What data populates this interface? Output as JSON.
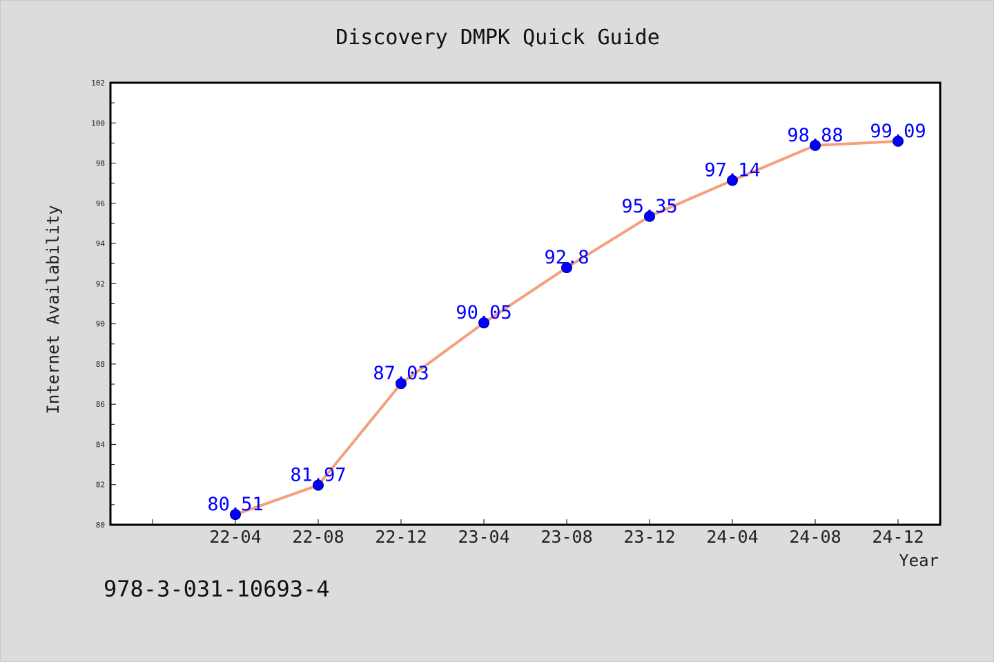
{
  "chart_data": {
    "type": "line",
    "title": "Discovery DMPK Quick Guide",
    "xlabel": "Year",
    "ylabel": "Internet Availability",
    "categories": [
      "22-04",
      "22-08",
      "22-12",
      "23-04",
      "23-08",
      "23-12",
      "24-04",
      "24-08",
      "24-12"
    ],
    "values": [
      80.51,
      81.97,
      87.03,
      90.05,
      92.8,
      95.35,
      97.14,
      98.88,
      99.09
    ],
    "data_labels": [
      "80.51",
      "81.97",
      "87.03",
      "90.05",
      "92.8",
      "95.35",
      "97.14",
      "98.88",
      "99.09"
    ],
    "ylim": [
      80,
      102
    ],
    "yticks": [
      80,
      82,
      84,
      86,
      88,
      90,
      92,
      94,
      96,
      98,
      100,
      102
    ],
    "grid": false,
    "legend": "none",
    "line_color": "#f4a07c",
    "marker_color": "#0000ff",
    "label_color": "#0000ff"
  },
  "footer_note": "978-3-031-10693-4"
}
